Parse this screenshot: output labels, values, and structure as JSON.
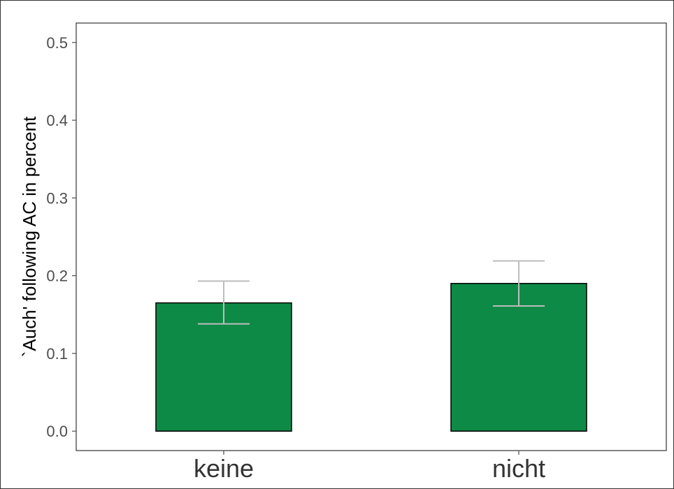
{
  "chart_data": {
    "type": "bar",
    "title": "",
    "xlabel": "",
    "ylabel": "`Auch' following AC in percent",
    "categories": [
      "keine",
      "nicht"
    ],
    "values": [
      0.165,
      0.19
    ],
    "error_bars": [
      {
        "low": 0.138,
        "high": 0.193
      },
      {
        "low": 0.161,
        "high": 0.219
      }
    ],
    "ylim": [
      -0.025,
      0.525
    ],
    "yticks": [
      "0.0",
      "0.1",
      "0.2",
      "0.3",
      "0.4",
      "0.5"
    ],
    "grid": false,
    "legend": "none",
    "colors": {
      "bar_fill": "#0e8a47",
      "bar_stroke": "#000000",
      "error_bar": "#bdbdbd",
      "panel_border": "#333333",
      "tick": "#4d4d4d"
    }
  }
}
